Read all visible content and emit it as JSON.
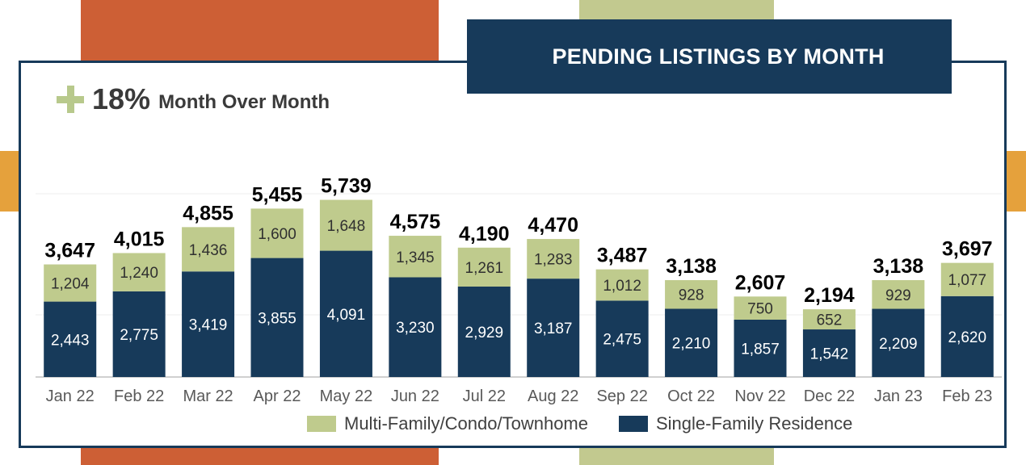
{
  "title": "PENDING LISTINGS BY MONTH",
  "kpi": {
    "value": "18%",
    "text": "Month Over Month"
  },
  "colors": {
    "single_family": "#173a5a",
    "multi_family": "#bfcb8d",
    "frame": "#173a5a",
    "deco_orange": "#cd5f35",
    "deco_green": "#c2c98f",
    "deco_amber": "#e5a13c"
  },
  "chart_data": {
    "type": "bar",
    "stacked": true,
    "categories": [
      "Jan 22",
      "Feb 22",
      "Mar 22",
      "Apr 22",
      "May 22",
      "Jun 22",
      "Jul 22",
      "Aug 22",
      "Sep 22",
      "Oct 22",
      "Nov 22",
      "Dec 22",
      "Jan 23",
      "Feb 23"
    ],
    "series": [
      {
        "name": "Single-Family Residence",
        "values": [
          2443,
          2775,
          3419,
          3855,
          4091,
          3230,
          2929,
          3187,
          2475,
          2210,
          1857,
          1542,
          2209,
          2620
        ]
      },
      {
        "name": "Multi-Family/Condo/Townhome",
        "values": [
          1204,
          1240,
          1436,
          1600,
          1648,
          1345,
          1261,
          1283,
          1012,
          928,
          750,
          652,
          929,
          1077
        ]
      }
    ],
    "totals": [
      3647,
      4015,
      4855,
      5455,
      5739,
      4575,
      4190,
      4470,
      3487,
      3138,
      2607,
      2194,
      3138,
      3697
    ],
    "value_labels": {
      "single": [
        "2,443",
        "2,775",
        "3,419",
        "3,855",
        "4,091",
        "3,230",
        "2,929",
        "3,187",
        "2,475",
        "2,210",
        "1,857",
        "1,542",
        "2,209",
        "2,620"
      ],
      "multi": [
        "1,204",
        "1,240",
        "1,436",
        "1,600",
        "1,648",
        "1,345",
        "1,261",
        "1,283",
        "1,012",
        "928",
        "750",
        "652",
        "929",
        "1,077"
      ],
      "totals": [
        "3,647",
        "4,015",
        "4,855",
        "5,455",
        "5,739",
        "4,575",
        "4,190",
        "4,470",
        "3,487",
        "3,138",
        "2,607",
        "2,194",
        "3,138",
        "3,697"
      ]
    },
    "ylim": [
      0,
      6000
    ],
    "grid": true,
    "legend": "bottom-center",
    "legend_order": [
      "Multi-Family/Condo/Townhome",
      "Single-Family Residence"
    ]
  }
}
